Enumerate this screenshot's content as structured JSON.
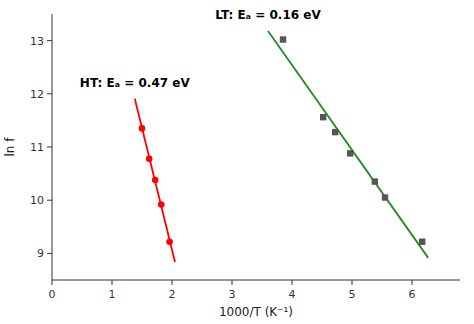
{
  "chart_data": {
    "type": "scatter",
    "xlabel": "1000/T (K⁻¹)",
    "ylabel": "ln f",
    "xlim": [
      0,
      6.8
    ],
    "ylim": [
      8.5,
      13.5
    ],
    "xticks": [
      0,
      1,
      2,
      3,
      4,
      5,
      6
    ],
    "yticks": [
      9,
      10,
      11,
      12,
      13
    ],
    "grid": false,
    "series": [
      {
        "type": "scatter",
        "marker": "circle",
        "color": "#FF0000",
        "x": [
          1.5,
          1.62,
          1.72,
          1.82,
          1.96
        ],
        "values": [
          11.35,
          10.78,
          10.38,
          9.92,
          9.22
        ]
      },
      {
        "type": "line",
        "line_style": "solid",
        "color": "#FF0000",
        "x": [
          1.38,
          2.05
        ],
        "values": [
          11.906,
          8.837
        ]
      },
      {
        "type": "scatter",
        "marker": "square",
        "color": "#555555",
        "x": [
          3.85,
          4.52,
          4.72,
          4.97,
          5.38,
          5.55,
          6.17
        ],
        "values": [
          13.02,
          11.56,
          11.28,
          10.88,
          10.35,
          10.05,
          9.22
        ]
      },
      {
        "type": "line",
        "line_style": "solid",
        "color": "#228B22",
        "x": [
          3.6,
          6.27
        ],
        "values": [
          13.182,
          8.916
        ]
      }
    ],
    "annotations": [
      "HT: Eₐ = 0.47 eV",
      "LT: Eₐ = 0.16 eV"
    ]
  }
}
